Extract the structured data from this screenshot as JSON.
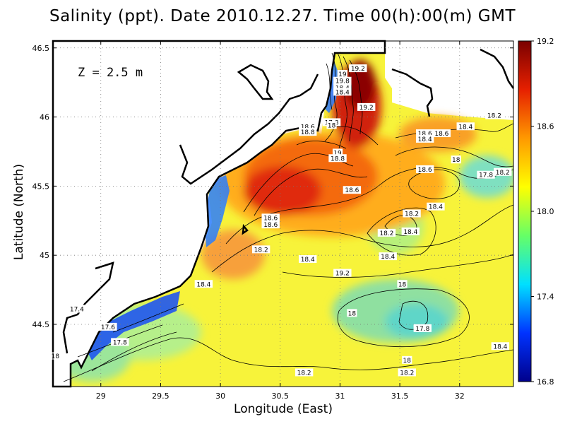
{
  "title": "Salinity (ppt). Date 2010.12.27. Time 00(h):00(m) GMT",
  "annotation": "Z = 2.5 m",
  "chart_data": {
    "type": "heatmap",
    "title": "Salinity (ppt). Date 2010.12.27. Time 00(h):00(m) GMT",
    "xlabel": "Longitude (East)",
    "ylabel": "Latitude (North)",
    "xlim": [
      28.6,
      32.45
    ],
    "ylim": [
      44.05,
      46.55
    ],
    "xticks": [
      "29",
      "29.5",
      "30",
      "30.5",
      "31",
      "31.5",
      "32"
    ],
    "yticks": [
      "44.5",
      "45",
      "45.5",
      "46",
      "46.5"
    ],
    "grid": true,
    "colorbar": {
      "ticks": [
        "16.8",
        "17.4",
        "18.0",
        "18.6",
        "19.2"
      ],
      "range": [
        16.8,
        19.2
      ],
      "colors": [
        "#00008b",
        "#0033ff",
        "#00e0ff",
        "#66ff66",
        "#ffff00",
        "#ff9900",
        "#e62000",
        "#7a0000"
      ]
    },
    "high_salinity_core": {
      "lon": 31.15,
      "lat": 46.2,
      "value": 19.2
    },
    "contour_labels": [
      {
        "text": "19.2",
        "lon": 31.15,
        "lat": 46.35
      },
      {
        "text": "19",
        "lon": 31.02,
        "lat": 46.31
      },
      {
        "text": "19.8",
        "lon": 31.02,
        "lat": 46.26
      },
      {
        "text": "18.4",
        "lon": 31.02,
        "lat": 46.21
      },
      {
        "text": "18.4",
        "lon": 31.02,
        "lat": 46.18
      },
      {
        "text": "19.2",
        "lon": 31.22,
        "lat": 46.07
      },
      {
        "text": "17.8",
        "lon": 30.93,
        "lat": 45.96
      },
      {
        "text": "18",
        "lon": 30.93,
        "lat": 45.94
      },
      {
        "text": "18.6",
        "lon": 30.73,
        "lat": 45.93
      },
      {
        "text": "18.8",
        "lon": 30.73,
        "lat": 45.89
      },
      {
        "text": "19",
        "lon": 30.98,
        "lat": 45.74
      },
      {
        "text": "18.8",
        "lon": 30.98,
        "lat": 45.7
      },
      {
        "text": "18.2",
        "lon": 32.29,
        "lat": 46.01
      },
      {
        "text": "18.4",
        "lon": 32.05,
        "lat": 45.93
      },
      {
        "text": "18.6",
        "lon": 31.71,
        "lat": 45.88
      },
      {
        "text": "18.6",
        "lon": 31.85,
        "lat": 45.88
      },
      {
        "text": "18.4",
        "lon": 31.71,
        "lat": 45.84
      },
      {
        "text": "18",
        "lon": 31.97,
        "lat": 45.69
      },
      {
        "text": "18.6",
        "lon": 31.71,
        "lat": 45.62
      },
      {
        "text": "17.8",
        "lon": 32.22,
        "lat": 45.58
      },
      {
        "text": "18.2",
        "lon": 32.36,
        "lat": 45.6
      },
      {
        "text": "18.6",
        "lon": 31.1,
        "lat": 45.47
      },
      {
        "text": "18.4",
        "lon": 31.8,
        "lat": 45.35
      },
      {
        "text": "18.2",
        "lon": 31.6,
        "lat": 45.3
      },
      {
        "text": "18.6",
        "lon": 30.42,
        "lat": 45.27
      },
      {
        "text": "18.6",
        "lon": 30.42,
        "lat": 45.22
      },
      {
        "text": "18.2",
        "lon": 31.39,
        "lat": 45.16
      },
      {
        "text": "18.4",
        "lon": 31.59,
        "lat": 45.17
      },
      {
        "text": "18.2",
        "lon": 30.34,
        "lat": 45.04
      },
      {
        "text": "18.4",
        "lon": 30.73,
        "lat": 44.97
      },
      {
        "text": "18.4",
        "lon": 31.4,
        "lat": 44.99
      },
      {
        "text": "19.2",
        "lon": 31.02,
        "lat": 44.87
      },
      {
        "text": "18.4",
        "lon": 29.86,
        "lat": 44.79
      },
      {
        "text": "18",
        "lon": 31.52,
        "lat": 44.79
      },
      {
        "text": "17.4",
        "lon": 28.8,
        "lat": 44.61
      },
      {
        "text": "18",
        "lon": 31.1,
        "lat": 44.58
      },
      {
        "text": "17.6",
        "lon": 29.06,
        "lat": 44.48
      },
      {
        "text": "17.8",
        "lon": 31.69,
        "lat": 44.47
      },
      {
        "text": "17.8",
        "lon": 29.16,
        "lat": 44.37
      },
      {
        "text": "18.4",
        "lon": 32.34,
        "lat": 44.34
      },
      {
        "text": "18",
        "lon": 28.62,
        "lat": 44.27
      },
      {
        "text": "18",
        "lon": 31.56,
        "lat": 44.24
      },
      {
        "text": "18.2",
        "lon": 30.7,
        "lat": 44.15
      },
      {
        "text": "18.2",
        "lon": 31.56,
        "lat": 44.15
      }
    ]
  }
}
